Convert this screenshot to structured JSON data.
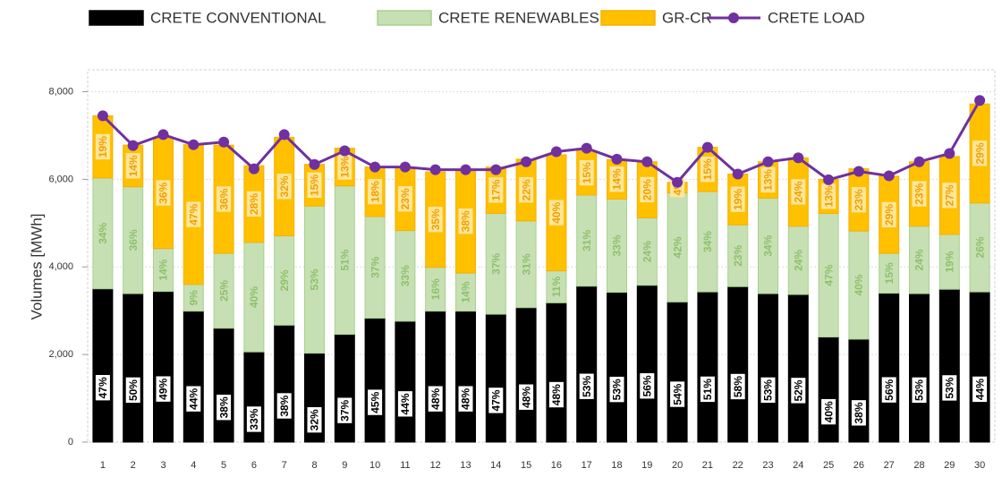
{
  "chart_data": {
    "type": "bar",
    "stacked": true,
    "y_label": "Volumes [MWh]",
    "categories": [
      "1",
      "2",
      "3",
      "4",
      "5",
      "6",
      "7",
      "8",
      "9",
      "10",
      "11",
      "12",
      "13",
      "14",
      "15",
      "16",
      "17",
      "18",
      "19",
      "20",
      "21",
      "22",
      "23",
      "24",
      "25",
      "26",
      "27",
      "28",
      "29",
      "30"
    ],
    "ylim": [
      0,
      8500
    ],
    "yticks": [
      0,
      {
        "value": 2000,
        "label": "2,000"
      },
      {
        "value": 4000,
        "label": "4,000"
      },
      {
        "value": 6000,
        "label": "6,000"
      },
      {
        "value": 8000,
        "label": "8,000"
      }
    ],
    "grid": true,
    "series": [
      {
        "name": "CRETE CONVENTIONAL",
        "color": "#000000",
        "type": "bar",
        "values": [
          3500,
          3390,
          3440,
          2990,
          2600,
          2060,
          2670,
          2030,
          2460,
          2830,
          2760,
          2990,
          2990,
          2920,
          3070,
          3180,
          3560,
          3420,
          3580,
          3200,
          3430,
          3550,
          3390,
          3370,
          2400,
          2350,
          3400,
          3390,
          3490,
          3430
        ],
        "data_labels": [
          "47%",
          "50%",
          "49%",
          "44%",
          "38%",
          "33%",
          "38%",
          "32%",
          "37%",
          "45%",
          "44%",
          "48%",
          "48%",
          "47%",
          "48%",
          "48%",
          "53%",
          "53%",
          "56%",
          "54%",
          "51%",
          "58%",
          "53%",
          "52%",
          "40%",
          "38%",
          "56%",
          "53%",
          "53%",
          "44%"
        ]
      },
      {
        "name": "CRETE RENEWABLES",
        "color": "#c6e0b4",
        "type": "bar",
        "values": [
          2530,
          2440,
          980,
          610,
          1710,
          2500,
          2040,
          3360,
          3390,
          2320,
          2070,
          1000,
          870,
          2300,
          1980,
          730,
          2080,
          2130,
          1540,
          2490,
          2290,
          1410,
          2180,
          1560,
          2820,
          2470,
          910,
          1540,
          1250,
          2030
        ],
        "data_labels": [
          "34%",
          "36%",
          "14%",
          "9%",
          "25%",
          "40%",
          "29%",
          "53%",
          "51%",
          "37%",
          "33%",
          "16%",
          "14%",
          "37%",
          "31%",
          "11%",
          "31%",
          "33%",
          "24%",
          "42%",
          "34%",
          "23%",
          "34%",
          "24%",
          "47%",
          "40%",
          "15%",
          "24%",
          "19%",
          "26%"
        ]
      },
      {
        "name": "GR-CR",
        "color": "#ffc000",
        "type": "bar",
        "values": [
          1420,
          950,
          2530,
          3190,
          2470,
          1750,
          2250,
          950,
          860,
          1130,
          1440,
          2180,
          2360,
          1060,
          1410,
          2650,
          1010,
          900,
          1280,
          240,
          1010,
          1160,
          830,
          1560,
          780,
          1420,
          1760,
          1470,
          1780,
          2260
        ],
        "data_labels": [
          "19%",
          "14%",
          "36%",
          "47%",
          "36%",
          "28%",
          "32%",
          "15%",
          "13%",
          "18%",
          "23%",
          "35%",
          "38%",
          "17%",
          "22%",
          "40%",
          "15%",
          "14%",
          "20%",
          "4%",
          "15%",
          "19%",
          "13%",
          "24%",
          "13%",
          "23%",
          "29%",
          "23%",
          "27%",
          "29%"
        ]
      },
      {
        "name": "CRETE LOAD",
        "color": "#7030a0",
        "type": "line",
        "values": [
          7450,
          6770,
          7020,
          6790,
          6850,
          6240,
          7020,
          6340,
          6650,
          6280,
          6280,
          6220,
          6220,
          6220,
          6400,
          6630,
          6710,
          6460,
          6400,
          5930,
          6730,
          6120,
          6400,
          6490,
          5990,
          6180,
          6080,
          6400,
          6590,
          7800
        ]
      }
    ]
  }
}
